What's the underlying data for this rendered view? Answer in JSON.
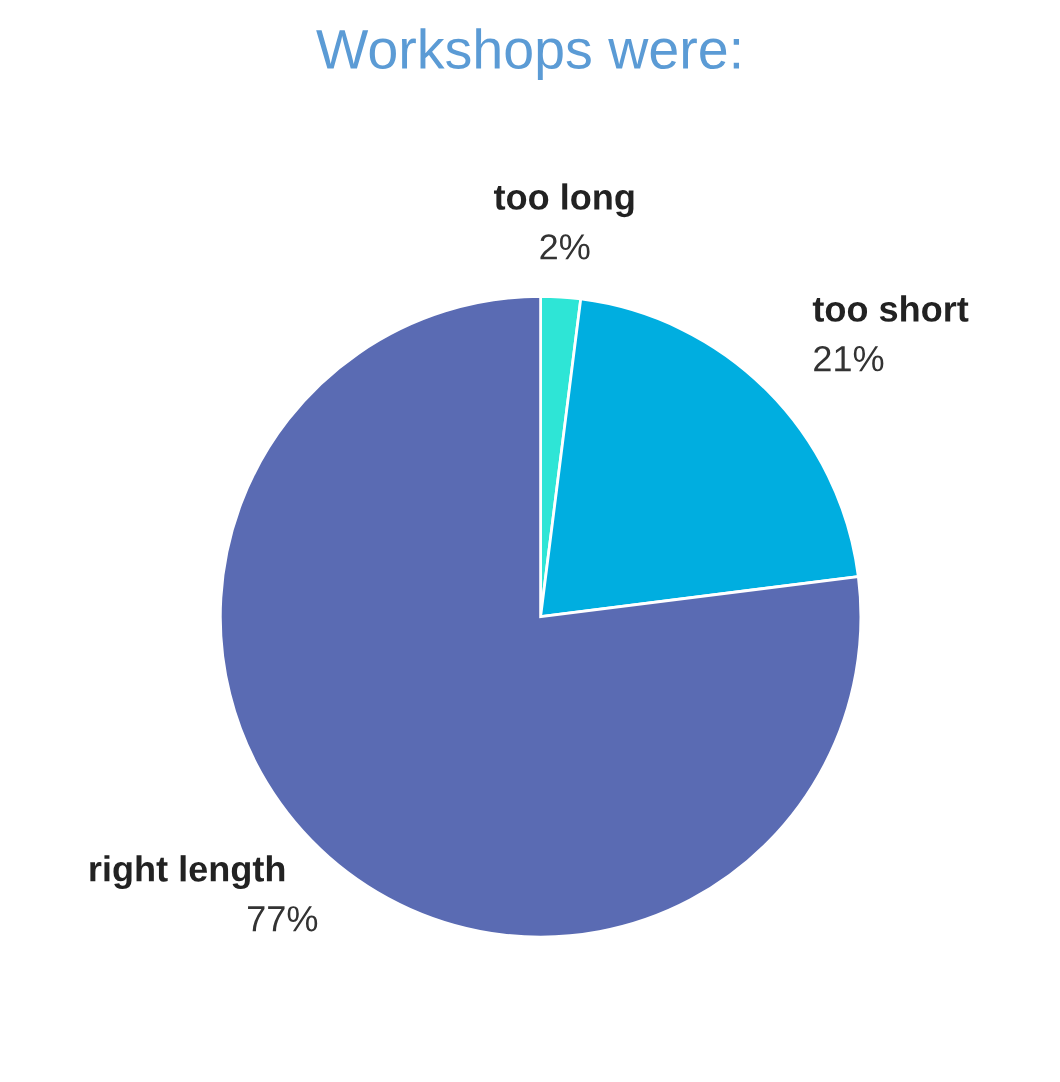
{
  "chart_data": {
    "type": "pie",
    "title": "Workshops were:",
    "categories": [
      "too long",
      "too short",
      "right length"
    ],
    "values": [
      2,
      21,
      77
    ],
    "colors": [
      "#2ee5d6",
      "#00aee0",
      "#5a6bb3"
    ],
    "value_labels": [
      "2%",
      "21%",
      "77%"
    ],
    "legend": false
  }
}
